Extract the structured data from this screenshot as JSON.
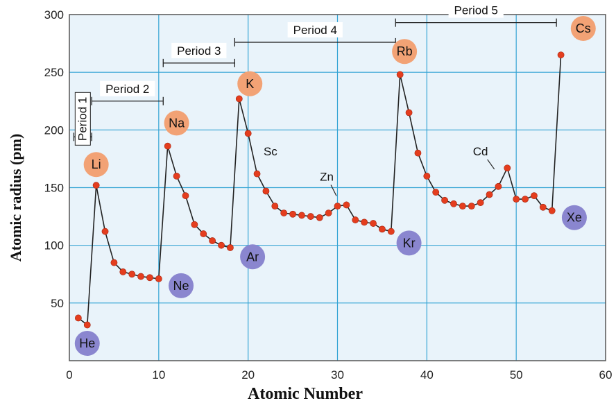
{
  "chart_data": {
    "type": "line",
    "xlabel": "Atomic Number",
    "ylabel": "Atomic radius (pm)",
    "xlim": [
      0,
      60
    ],
    "ylim": [
      0,
      300
    ],
    "xticks": [
      0,
      10,
      20,
      30,
      40,
      50,
      60
    ],
    "yticks": [
      50,
      100,
      150,
      200,
      250,
      300
    ],
    "grid": true,
    "colors": {
      "plot_bg": "#e9f3fa",
      "grid": "#35a4d4",
      "line": "#222222",
      "point": "#e43d1e",
      "alkali_badge": "#f2a275",
      "noble_badge": "#8a86cf"
    },
    "x": [
      1,
      2,
      3,
      4,
      5,
      6,
      7,
      8,
      9,
      10,
      11,
      12,
      13,
      14,
      15,
      16,
      17,
      18,
      19,
      20,
      21,
      22,
      23,
      24,
      25,
      26,
      27,
      28,
      29,
      30,
      31,
      32,
      33,
      34,
      35,
      36,
      37,
      38,
      39,
      40,
      41,
      42,
      43,
      44,
      45,
      46,
      47,
      48,
      49,
      50,
      51,
      52,
      53,
      54,
      55
    ],
    "series": [
      {
        "values": [
          37,
          31,
          152,
          112,
          85,
          77,
          75,
          73,
          72,
          71,
          186,
          160,
          143,
          118,
          110,
          104,
          100,
          98,
          227,
          197,
          162,
          147,
          134,
          128,
          127,
          126,
          125,
          124,
          128,
          134,
          135,
          122,
          120,
          119,
          114,
          112,
          248,
          215,
          180,
          160,
          146,
          139,
          136,
          134,
          134,
          137,
          144,
          151,
          167,
          140,
          140,
          143,
          133,
          130,
          265
        ]
      }
    ],
    "element_labels": [
      {
        "label": "He",
        "x": 2,
        "y": 15,
        "group": "noble"
      },
      {
        "label": "Ne",
        "x": 12.5,
        "y": 65,
        "group": "noble"
      },
      {
        "label": "Ar",
        "x": 20.5,
        "y": 90,
        "group": "noble"
      },
      {
        "label": "Kr",
        "x": 38,
        "y": 102,
        "group": "noble"
      },
      {
        "label": "Xe",
        "x": 56.5,
        "y": 124,
        "group": "noble"
      },
      {
        "label": "Li",
        "x": 3,
        "y": 170,
        "group": "alkali"
      },
      {
        "label": "Na",
        "x": 12,
        "y": 206,
        "group": "alkali"
      },
      {
        "label": "K",
        "x": 20.2,
        "y": 240,
        "group": "alkali"
      },
      {
        "label": "Rb",
        "x": 37.5,
        "y": 268,
        "group": "alkali"
      },
      {
        "label": "Cs",
        "x": 57.5,
        "y": 288,
        "group": "alkali"
      }
    ],
    "period_brackets": [
      {
        "label": "Period 1",
        "x_start": 0.5,
        "x_end": 2.5,
        "y": 194
      },
      {
        "label": "Period 2",
        "x_start": 2.5,
        "x_end": 10.5,
        "y": 225
      },
      {
        "label": "Period 3",
        "x_start": 10.5,
        "x_end": 18.5,
        "y": 258
      },
      {
        "label": "Period 4",
        "x_start": 18.5,
        "x_end": 36.5,
        "y": 276
      },
      {
        "label": "Period 5",
        "x_start": 36.5,
        "x_end": 54.5,
        "y": 293
      }
    ],
    "annotations": [
      {
        "label": "Sc",
        "x": 22.5,
        "y": 178
      },
      {
        "label": "Zn",
        "x": 28.8,
        "y": 156
      },
      {
        "label": "Cd",
        "x": 46,
        "y": 178
      }
    ]
  }
}
